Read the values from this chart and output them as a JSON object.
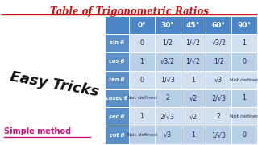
{
  "title": "Table of Trigonometric Ratios",
  "left_text1": "Easy Tricks",
  "left_text2": "Simple method",
  "bg_color": "#ffffff",
  "header_bg": "#4a86c8",
  "row_header_bg": "#5a8fc8",
  "row_bg_even": "#b8cfe8",
  "row_bg_odd": "#d0e0f0",
  "col_headers": [
    "0°",
    "30°",
    "45°",
    "60°",
    "90°"
  ],
  "row_headers": [
    "sin θ",
    "cos θ",
    "tan θ",
    "cosec θ",
    "sec θ",
    "cot θ"
  ],
  "table_data": [
    [
      "0",
      "1/2",
      "1/√2",
      "√3/2",
      "1"
    ],
    [
      "1",
      "√3/2",
      "1/√2",
      "1/2",
      "0"
    ],
    [
      "0",
      "1/√3",
      "1",
      "√3",
      "Not defined"
    ],
    [
      "Not defined",
      "2",
      "√2",
      "2/√3",
      "1"
    ],
    [
      "1",
      "2/√3",
      "√2",
      "2",
      "Not defined"
    ],
    [
      "Not defined",
      "√3",
      "1",
      "1/√3",
      "0"
    ]
  ],
  "title_color": "#cc1111",
  "left_text1_color": "#111111",
  "left_text2_color": "#cc1177",
  "cell_dark_text": "#1a2a4a",
  "cell_light_text": "#ffffff",
  "border_color": "#ffffff"
}
